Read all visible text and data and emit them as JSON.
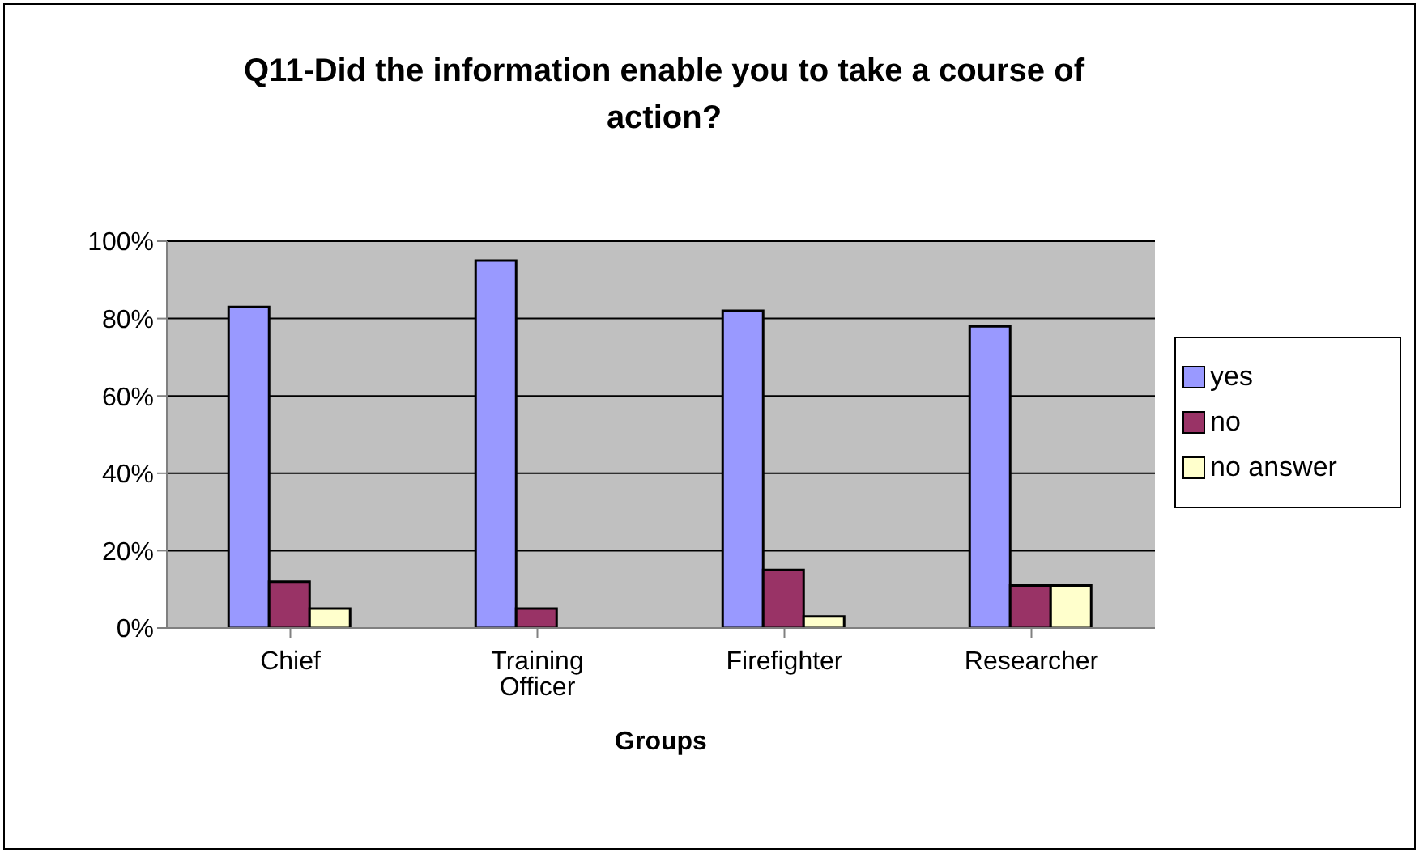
{
  "chart_data": {
    "type": "bar",
    "title": "Q11-Did the information enable you to take a course of action?",
    "xlabel": "Groups",
    "categories": [
      "Chief",
      "Training Officer",
      "Firefighter",
      "Researcher"
    ],
    "series": [
      {
        "name": "yes",
        "color": "#9999ff",
        "values": [
          83,
          95,
          82,
          78
        ]
      },
      {
        "name": "no",
        "color": "#993366",
        "values": [
          12,
          5,
          15,
          11
        ]
      },
      {
        "name": "no answer",
        "color": "#ffffcc",
        "values": [
          5,
          0,
          3,
          11
        ]
      }
    ],
    "ylim": [
      0,
      100
    ],
    "yticks": [
      {
        "value": 0,
        "label": "0%"
      },
      {
        "value": 20,
        "label": "20%"
      },
      {
        "value": 40,
        "label": "40%"
      },
      {
        "value": 60,
        "label": "60%"
      },
      {
        "value": 80,
        "label": "80%"
      },
      {
        "value": 100,
        "label": "100%"
      }
    ],
    "grid": "y",
    "legend": "right"
  }
}
